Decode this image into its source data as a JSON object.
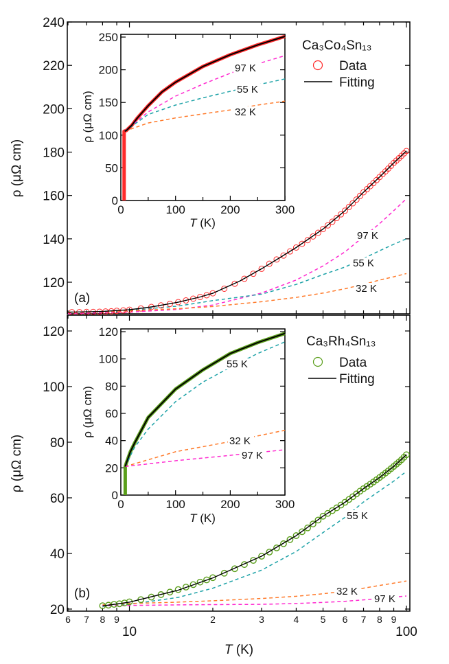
{
  "colors": {
    "data_a": "#ff2a2a",
    "data_b": "#5a9e1a",
    "fit": "#000000",
    "k97": "#ff2ad0",
    "k55": "#1fa3a8",
    "k32": "#ff7a2a"
  },
  "xlabel": {
    "italic": "T",
    "rest": " (K)"
  },
  "ylabel": "ρ (μΩ cm)",
  "panel_a": {
    "tag": "(a)",
    "legend": {
      "title": "Ca₃Co₄Sn₁₃",
      "data": "Data",
      "fit": "Fitting"
    }
  },
  "panel_b": {
    "tag": "(b)",
    "legend": {
      "title": "Ca₃Rh₄Sn₁₃",
      "data": "Data",
      "fit": "Fitting"
    }
  },
  "chart_data": [
    {
      "id": "main_a",
      "type": "scatter+line",
      "xscale": "log",
      "xlim": [
        6,
        100
      ],
      "ylim": [
        105,
        240
      ],
      "xlabel": "T (K)",
      "ylabel": "ρ (μΩ cm)",
      "yticks": [
        120,
        140,
        160,
        180,
        200,
        220,
        240
      ],
      "xticks_major": [
        10,
        100
      ],
      "xticks_minor": [
        6,
        7,
        8,
        9,
        20,
        30,
        40,
        50,
        60,
        70,
        80,
        90
      ],
      "minor_tick_labels": [
        "6",
        "7",
        "8",
        "9",
        "2",
        "3",
        "4",
        "5",
        "6",
        "7",
        "8",
        "9"
      ],
      "series": [
        {
          "name": "Data",
          "kind": "open-circles",
          "color_key": "data_a",
          "x": [
            6.2,
            6.6,
            7.0,
            7.4,
            7.8,
            8.2,
            8.6,
            9.0,
            9.5,
            10,
            11,
            12,
            13,
            14,
            15,
            16,
            17,
            18,
            19,
            20,
            22,
            24,
            26,
            28,
            30,
            32,
            34,
            36,
            38,
            40,
            42,
            44,
            46,
            48,
            50,
            52,
            54,
            56,
            58,
            60,
            62,
            64,
            66,
            68,
            70,
            72,
            74,
            76,
            78,
            80,
            82,
            84,
            86,
            88,
            90,
            92,
            94,
            96,
            98,
            100
          ],
          "y": [
            106.2,
            106.2,
            106.3,
            106.3,
            106.4,
            106.5,
            106.6,
            106.8,
            107.0,
            107.3,
            107.9,
            108.6,
            109.3,
            110.0,
            110.8,
            111.6,
            112.4,
            113.2,
            114.0,
            114.9,
            117.0,
            119.3,
            121.6,
            123.9,
            126.2,
            128.5,
            130.5,
            132.3,
            134.2,
            136.0,
            137.7,
            139.4,
            141.1,
            142.8,
            144.5,
            146.2,
            147.9,
            149.6,
            151.3,
            153.0,
            154.7,
            156.4,
            158.1,
            159.8,
            161.5,
            162.9,
            164.3,
            165.7,
            167.1,
            168.5,
            169.8,
            171.1,
            172.4,
            173.7,
            175.0,
            176.1,
            177.2,
            178.3,
            179.4,
            180.5
          ]
        },
        {
          "name": "Fitting",
          "kind": "line",
          "color_key": "fit",
          "x": [
            6,
            8,
            10,
            12,
            15,
            18,
            20,
            25,
            30,
            35,
            40,
            50,
            60,
            70,
            80,
            90,
            100
          ],
          "y": [
            106.2,
            106.5,
            107.3,
            108.6,
            110.8,
            113.2,
            114.9,
            120.5,
            126.2,
            131.4,
            136.0,
            144.5,
            153.0,
            161.5,
            168.5,
            175.0,
            180.5
          ]
        },
        {
          "name": "97 K",
          "kind": "dashed",
          "color_key": "k97",
          "x": [
            6,
            10,
            15,
            20,
            30,
            40,
            50,
            60,
            70,
            80,
            90,
            100
          ],
          "y": [
            105.5,
            106.2,
            107.5,
            109.5,
            115,
            121,
            127.5,
            134,
            141,
            147,
            153,
            158.5
          ]
        },
        {
          "name": "55 K",
          "kind": "dashed",
          "color_key": "k55",
          "x": [
            6,
            10,
            15,
            20,
            30,
            40,
            50,
            60,
            70,
            80,
            90,
            100
          ],
          "y": [
            106,
            107,
            109,
            111.5,
            114.5,
            119,
            123.5,
            127,
            131,
            134.5,
            137.5,
            140
          ]
        },
        {
          "name": "32 K",
          "kind": "dashed",
          "color_key": "k32",
          "x": [
            6,
            10,
            15,
            20,
            30,
            40,
            50,
            60,
            70,
            80,
            90,
            100
          ],
          "y": [
            106,
            106.8,
            107.8,
            108.8,
            111,
            113,
            115,
            117,
            119,
            121,
            122.5,
            124
          ]
        }
      ]
    },
    {
      "id": "inset_a",
      "type": "line",
      "xscale": "linear",
      "xlim": [
        0,
        300
      ],
      "ylim": [
        0,
        254
      ],
      "xlabel": "T (K)",
      "ylabel": "ρ (μΩ cm)",
      "xticks": [
        0,
        100,
        200,
        300
      ],
      "yticks": [
        0,
        50,
        100,
        150,
        200,
        250
      ],
      "series": [
        {
          "name": "Data",
          "kind": "thick-line",
          "color_key": "data_a",
          "x": [
            6,
            6,
            10,
            20,
            30,
            50,
            75,
            100,
            150,
            200,
            250,
            300
          ],
          "y": [
            0,
            106,
            107,
            115,
            126,
            145,
            166,
            181,
            205,
            223,
            238,
            251
          ]
        },
        {
          "name": "Fitting",
          "kind": "line",
          "color_key": "fit",
          "x": [
            7,
            10,
            20,
            30,
            50,
            75,
            100,
            150,
            200,
            250,
            300
          ],
          "y": [
            106,
            107,
            115,
            126,
            145,
            166,
            181,
            205,
            223,
            238,
            251
          ]
        },
        {
          "name": "97 K",
          "kind": "dashed",
          "color_key": "k97",
          "x": [
            7,
            50,
            100,
            150,
            200,
            250,
            300
          ],
          "y": [
            106,
            135.5,
            159.7,
            178,
            194.6,
            209,
            221.6
          ]
        },
        {
          "name": "55 K",
          "kind": "dashed",
          "color_key": "k55",
          "x": [
            7,
            50,
            100,
            150,
            200,
            250,
            300
          ],
          "y": [
            106,
            131.6,
            146,
            157,
            167,
            177,
            186
          ]
        },
        {
          "name": "32 K",
          "kind": "dashed",
          "color_key": "k32",
          "x": [
            7,
            50,
            100,
            150,
            200,
            250,
            300
          ],
          "y": [
            106,
            118.6,
            126.4,
            132.5,
            138.6,
            146,
            152
          ]
        }
      ]
    },
    {
      "id": "main_b",
      "type": "scatter+line",
      "xscale": "log",
      "xlim": [
        6,
        100
      ],
      "ylim": [
        19,
        126
      ],
      "xlabel": "T (K)",
      "ylabel": "ρ (μΩ cm)",
      "yticks": [
        20,
        40,
        60,
        80,
        100,
        120
      ],
      "xticks_major": [
        10,
        100
      ],
      "xticks_minor": [
        6,
        7,
        8,
        9,
        20,
        30,
        40,
        50,
        60,
        70,
        80,
        90
      ],
      "major_tick_labels": [
        "10",
        "100"
      ],
      "minor_tick_labels": [
        "6",
        "7",
        "8",
        "9",
        "2",
        "3",
        "4",
        "5",
        "6",
        "7",
        "8",
        "9"
      ],
      "series": [
        {
          "name": "Data",
          "kind": "open-circles",
          "color_key": "data_b",
          "x": [
            8.0,
            8.4,
            8.8,
            9.2,
            9.6,
            10,
            11,
            12,
            13,
            14,
            15,
            16,
            17,
            18,
            19,
            20,
            22,
            24,
            26,
            28,
            30,
            32,
            34,
            36,
            38,
            40,
            42,
            44,
            46,
            48,
            50,
            52,
            54,
            56,
            58,
            60,
            62,
            64,
            66,
            68,
            70,
            72,
            74,
            76,
            78,
            80,
            82,
            84,
            86,
            88,
            90,
            92,
            94,
            96,
            98,
            100
          ],
          "y": [
            21.2,
            21.4,
            21.7,
            21.9,
            22.2,
            22.6,
            23.4,
            24.3,
            25.2,
            26.1,
            27.0,
            27.9,
            28.8,
            29.7,
            30.5,
            31.3,
            32.9,
            34.5,
            36.0,
            37.5,
            39.0,
            40.5,
            42.0,
            43.5,
            45.0,
            46.4,
            47.8,
            49.2,
            50.6,
            52.0,
            53.4,
            54.4,
            55.4,
            56.4,
            57.4,
            58.4,
            59.4,
            60.4,
            61.4,
            62.4,
            63.3,
            64.1,
            64.9,
            65.7,
            66.5,
            67.3,
            68.1,
            68.9,
            69.7,
            70.5,
            71.3,
            72.1,
            72.9,
            73.7,
            74.6,
            75.5
          ]
        },
        {
          "name": "Fitting",
          "kind": "line",
          "color_key": "fit",
          "x": [
            8,
            10,
            15,
            20,
            30,
            40,
            50,
            60,
            70,
            80,
            90,
            100
          ],
          "y": [
            21.1,
            22.5,
            26.8,
            31.2,
            39,
            46.4,
            53.4,
            58.4,
            63.3,
            67.3,
            71.3,
            75.5
          ]
        },
        {
          "name": "55 K",
          "kind": "dashed",
          "color_key": "k55",
          "x": [
            8,
            10,
            15,
            20,
            30,
            40,
            50,
            60,
            70,
            80,
            90,
            100
          ],
          "y": [
            21,
            21.7,
            24.2,
            27.5,
            34,
            40.7,
            47.5,
            53,
            58.5,
            62.5,
            66,
            69.5
          ]
        },
        {
          "name": "32 K",
          "kind": "dashed",
          "color_key": "k32",
          "x": [
            8,
            10,
            15,
            20,
            30,
            40,
            50,
            60,
            70,
            80,
            90,
            100
          ],
          "y": [
            21.5,
            22,
            22.5,
            23,
            23.8,
            24.6,
            25.5,
            26.4,
            27.5,
            28.5,
            29.3,
            30.1
          ]
        },
        {
          "name": "97 K",
          "kind": "dashed",
          "color_key": "k97",
          "x": [
            8,
            10,
            15,
            20,
            30,
            40,
            50,
            60,
            70,
            80,
            90,
            100
          ],
          "y": [
            21.2,
            21.3,
            21.5,
            21.6,
            21.7,
            22,
            22.4,
            22.8,
            23.3,
            23.8,
            24.3,
            24.7
          ]
        }
      ]
    },
    {
      "id": "inset_b",
      "type": "line",
      "xscale": "linear",
      "xlim": [
        0,
        300
      ],
      "ylim": [
        0,
        122
      ],
      "xlabel": "T (K)",
      "ylabel": "ρ (μΩ cm)",
      "xticks": [
        0,
        100,
        200,
        300
      ],
      "yticks": [
        0,
        20,
        40,
        60,
        80,
        100,
        120
      ],
      "series": [
        {
          "name": "Data",
          "kind": "thick-line",
          "color_key": "data_b",
          "x": [
            8,
            8,
            10,
            17.5,
            25,
            50,
            100,
            150,
            200,
            250,
            300
          ],
          "y": [
            0,
            21,
            23.5,
            31.8,
            38,
            57,
            77.8,
            92,
            104,
            112,
            118.7
          ]
        },
        {
          "name": "Fitting",
          "kind": "line",
          "color_key": "fit",
          "x": [
            8,
            10,
            17.5,
            25,
            50,
            100,
            150,
            200,
            250,
            300
          ],
          "y": [
            21,
            23.5,
            31.8,
            38,
            57,
            77.8,
            92,
            104,
            112,
            118.7
          ]
        },
        {
          "name": "55 K",
          "kind": "dashed",
          "color_key": "k55",
          "x": [
            8,
            25,
            50,
            100,
            150,
            200,
            250,
            300
          ],
          "y": [
            21,
            35,
            48.4,
            68.6,
            83,
            93.8,
            104,
            112.5
          ]
        },
        {
          "name": "32 K",
          "kind": "dashed",
          "color_key": "k32",
          "x": [
            8,
            100,
            200,
            300
          ],
          "y": [
            21,
            31.8,
            39.3,
            47.6
          ]
        },
        {
          "name": "97 K",
          "kind": "dashed",
          "color_key": "k97",
          "x": [
            8,
            100,
            200,
            300
          ],
          "y": [
            21,
            25.2,
            29.2,
            33.3
          ]
        }
      ]
    }
  ]
}
